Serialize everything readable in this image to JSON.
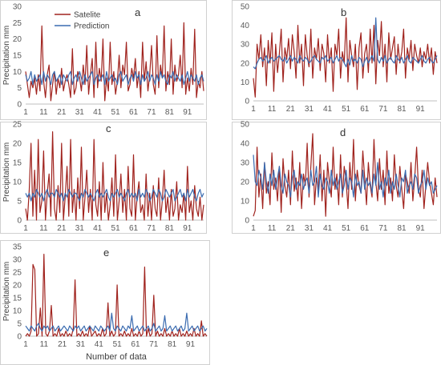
{
  "chart_data": [
    {
      "panel": "a",
      "type": "line",
      "x_ticks": [
        "1",
        "11",
        "21",
        "31",
        "41",
        "51",
        "61",
        "71",
        "81",
        "91"
      ],
      "ylabel": "Precipitation mm",
      "xlabel": "",
      "y_ticks": [
        0,
        5,
        10,
        15,
        20,
        25,
        30
      ],
      "ylim": [
        0,
        30
      ],
      "legend": [
        "Satelite",
        "Prediction"
      ],
      "legend_position": "top-left",
      "series": [
        {
          "name": "Satelite",
          "color": "#a0231e",
          "values": [
            10,
            6,
            2,
            7,
            5,
            8,
            3,
            9,
            4,
            24,
            7,
            2,
            9,
            12,
            1,
            6,
            10,
            3,
            8,
            5,
            11,
            4,
            7,
            9,
            6,
            2,
            17,
            3,
            5,
            10,
            8,
            4,
            12,
            6,
            18,
            3,
            9,
            14,
            2,
            19,
            5,
            11,
            7,
            20,
            1,
            8,
            4,
            19,
            6,
            10,
            3,
            7,
            15,
            5,
            12,
            9,
            19,
            4,
            6,
            11,
            8,
            14,
            5,
            10,
            2,
            19,
            7,
            13,
            4,
            9,
            18,
            6,
            3,
            21,
            5,
            12,
            8,
            24,
            4,
            10,
            6,
            20,
            3,
            12,
            7,
            9,
            15,
            5,
            25,
            3,
            8,
            4,
            11,
            6,
            23,
            2,
            7,
            5,
            10,
            4
          ]
        },
        {
          "name": "Prediction",
          "color": "#3a6bb0",
          "values": [
            9,
            7,
            8,
            10,
            6,
            9,
            7,
            8,
            9,
            6,
            10,
            7,
            9,
            8,
            6,
            9,
            10,
            7,
            8,
            9,
            6,
            9,
            8,
            7,
            9,
            10,
            6,
            8,
            9,
            7,
            10,
            8,
            6,
            9,
            7,
            8,
            9,
            10,
            6,
            8,
            9,
            7,
            8,
            9,
            6,
            10,
            7,
            8,
            9,
            7,
            8,
            6,
            9,
            10,
            7,
            8,
            9,
            6,
            8,
            9,
            7,
            10,
            8,
            9,
            6,
            9,
            7,
            8,
            10,
            7,
            9,
            8,
            6,
            9,
            7,
            10,
            8,
            9,
            7,
            6,
            9,
            8,
            10,
            7,
            9,
            8,
            7,
            9,
            6,
            8,
            10,
            7,
            9,
            8,
            7,
            9,
            6,
            8,
            9,
            7
          ]
        }
      ]
    },
    {
      "panel": "b",
      "type": "line",
      "x_ticks": [
        "1",
        "11",
        "21",
        "31",
        "41",
        "51",
        "61",
        "71",
        "81",
        "91"
      ],
      "y_ticks": [
        0,
        10,
        20,
        30,
        40,
        50
      ],
      "ylim": [
        0,
        50
      ],
      "series": [
        {
          "name": "Satelite",
          "color": "#a0231e",
          "values": [
            12,
            2,
            30,
            22,
            35,
            18,
            28,
            8,
            32,
            20,
            36,
            5,
            30,
            15,
            25,
            38,
            10,
            28,
            22,
            33,
            17,
            35,
            26,
            12,
            40,
            20,
            30,
            8,
            35,
            24,
            18,
            38,
            12,
            28,
            22,
            33,
            16,
            30,
            25,
            10,
            35,
            20,
            28,
            5,
            30,
            24,
            38,
            12,
            26,
            20,
            44,
            10,
            32,
            24,
            18,
            30,
            6,
            28,
            36,
            12,
            25,
            30,
            15,
            38,
            20,
            40,
            9,
            32,
            24,
            42,
            18,
            30,
            10,
            36,
            22,
            28,
            34,
            14,
            30,
            20,
            26,
            38,
            12,
            28,
            22,
            32,
            16,
            30,
            24,
            20,
            28,
            18,
            26,
            22,
            30,
            20,
            28,
            14,
            26,
            20
          ]
        },
        {
          "name": "Prediction",
          "color": "#3a6bb0",
          "values": [
            18,
            17,
            20,
            22,
            23,
            21,
            22,
            24,
            20,
            22,
            23,
            21,
            22,
            23,
            24,
            22,
            21,
            23,
            20,
            22,
            24,
            21,
            23,
            22,
            20,
            24,
            22,
            21,
            23,
            22,
            20,
            21,
            23,
            24,
            22,
            21,
            20,
            23,
            22,
            24,
            21,
            22,
            23,
            20,
            22,
            24,
            21,
            23,
            22,
            20,
            18,
            22,
            19,
            24,
            21,
            22,
            20,
            23,
            22,
            18,
            21,
            23,
            20,
            22,
            24,
            21,
            44,
            22,
            20,
            23,
            21,
            24,
            20,
            22,
            23,
            21,
            20,
            24,
            22,
            21,
            23,
            20,
            22,
            24,
            21,
            20,
            23,
            22,
            21,
            20,
            22,
            24,
            21,
            20,
            22,
            23,
            21,
            20,
            22,
            24
          ]
        }
      ]
    },
    {
      "panel": "c",
      "type": "line",
      "x_ticks": [
        "1",
        "11",
        "21",
        "31",
        "41",
        "51",
        "61",
        "71",
        "81",
        "91"
      ],
      "ylabel": "Precipitation mm",
      "y_ticks": [
        0,
        5,
        10,
        15,
        20,
        25
      ],
      "ylim": [
        0,
        25
      ],
      "series": [
        {
          "name": "Satelite",
          "color": "#a0231e",
          "values": [
            3,
            0,
            8,
            20,
            1,
            13,
            0,
            21,
            2,
            5,
            18,
            0,
            7,
            12,
            1,
            23,
            3,
            0,
            9,
            2,
            20,
            0,
            6,
            14,
            1,
            21,
            2,
            8,
            0,
            11,
            3,
            19,
            0,
            6,
            13,
            2,
            8,
            0,
            21,
            4,
            1,
            10,
            0,
            15,
            2,
            7,
            0,
            4,
            11,
            1,
            17,
            0,
            5,
            12,
            2,
            8,
            0,
            14,
            3,
            1,
            17,
            0,
            6,
            10,
            2,
            4,
            0,
            12,
            1,
            7,
            0,
            9,
            3,
            1,
            11,
            0,
            5,
            13,
            2,
            6,
            0,
            8,
            1,
            3,
            10,
            0,
            4,
            2,
            7,
            0,
            14,
            2,
            5,
            0,
            9,
            3,
            1,
            6,
            0,
            4
          ]
        },
        {
          "name": "Prediction",
          "color": "#3a6bb0",
          "values": [
            7,
            6,
            7,
            5,
            7,
            6,
            8,
            7,
            6,
            7,
            5,
            7,
            8,
            6,
            7,
            7,
            6,
            8,
            7,
            6,
            7,
            5,
            7,
            6,
            8,
            7,
            6,
            7,
            7,
            6,
            5,
            7,
            6,
            8,
            7,
            6,
            7,
            6,
            5,
            7,
            8,
            6,
            7,
            6,
            7,
            8,
            6,
            5,
            7,
            6,
            7,
            8,
            6,
            7,
            6,
            5,
            7,
            8,
            6,
            7,
            6,
            7,
            5,
            8,
            6,
            7,
            6,
            8,
            7,
            5,
            6,
            8,
            7,
            6,
            8,
            7,
            5,
            6,
            8,
            7,
            6,
            7,
            8,
            5,
            6,
            7,
            8,
            6,
            7,
            5,
            8,
            6,
            7,
            8,
            6,
            5,
            7,
            8,
            6,
            7
          ]
        }
      ]
    },
    {
      "panel": "d",
      "type": "line",
      "x_ticks": [
        "1",
        "11",
        "21",
        "31",
        "41",
        "51",
        "61",
        "71",
        "81",
        "91"
      ],
      "y_ticks": [
        0,
        10,
        20,
        30,
        40,
        50
      ],
      "ylim": [
        0,
        50
      ],
      "series": [
        {
          "name": "Satelite",
          "color": "#a0231e",
          "values": [
            2,
            5,
            38,
            12,
            24,
            6,
            30,
            14,
            20,
            8,
            35,
            16,
            22,
            10,
            28,
            4,
            32,
            18,
            12,
            26,
            8,
            36,
            15,
            22,
            10,
            30,
            6,
            24,
            18,
            40,
            12,
            28,
            45,
            8,
            22,
            16,
            34,
            10,
            26,
            2,
            30,
            20,
            12,
            38,
            16,
            24,
            8,
            34,
            12,
            28,
            20,
            6,
            30,
            16,
            42,
            10,
            26,
            18,
            14,
            36,
            22,
            8,
            30,
            18,
            12,
            42,
            20,
            10,
            32,
            16,
            26,
            8,
            36,
            14,
            22,
            10,
            34,
            18,
            12,
            28,
            16,
            6,
            24,
            20,
            14,
            30,
            10,
            22,
            38,
            16,
            12,
            26,
            6,
            18,
            30,
            20,
            14,
            8,
            22,
            12
          ]
        },
        {
          "name": "Prediction",
          "color": "#3a6bb0",
          "values": [
            34,
            20,
            18,
            26,
            22,
            16,
            30,
            20,
            14,
            24,
            18,
            26,
            16,
            22,
            28,
            18,
            14,
            24,
            20,
            18,
            12,
            22,
            26,
            16,
            20,
            18,
            24,
            16,
            20,
            22,
            14,
            26,
            18,
            20,
            28,
            12,
            24,
            18,
            16,
            22,
            20,
            14,
            26,
            18,
            22,
            16,
            20,
            24,
            14,
            18,
            26,
            16,
            22,
            20,
            12,
            24,
            18,
            20,
            14,
            26,
            16,
            22,
            18,
            20,
            14,
            24,
            18,
            30,
            16,
            20,
            12,
            22,
            18,
            26,
            14,
            20,
            16,
            24,
            18,
            12,
            22,
            20,
            26,
            14,
            18,
            20,
            16,
            24,
            22,
            14,
            18,
            20,
            26,
            16,
            22,
            18,
            20,
            14,
            16,
            18
          ]
        }
      ]
    },
    {
      "panel": "e",
      "type": "line",
      "x_ticks": [
        "1",
        "11",
        "21",
        "31",
        "41",
        "51",
        "61",
        "71",
        "81",
        "91"
      ],
      "ylabel": "Precipitation mm",
      "xlabel": "Number of data",
      "y_ticks": [
        0,
        5,
        10,
        15,
        20,
        25,
        30,
        35
      ],
      "ylim": [
        0,
        35
      ],
      "series": [
        {
          "name": "Satelite",
          "color": "#a0231e",
          "values": [
            0,
            1,
            0,
            2,
            28,
            26,
            0,
            1,
            11,
            0,
            32,
            1,
            0,
            2,
            12,
            0,
            1,
            0,
            3,
            0,
            1,
            0,
            2,
            0,
            1,
            0,
            3,
            22,
            0,
            1,
            0,
            2,
            0,
            1,
            0,
            4,
            0,
            1,
            2,
            0,
            1,
            0,
            3,
            0,
            1,
            13,
            0,
            2,
            0,
            1,
            20,
            0,
            1,
            0,
            2,
            0,
            1,
            0,
            3,
            0,
            1,
            0,
            2,
            0,
            1,
            27,
            0,
            3,
            0,
            1,
            16,
            0,
            2,
            0,
            1,
            0,
            3,
            0,
            1,
            0,
            2,
            0,
            1,
            0,
            3,
            0,
            1,
            0,
            2,
            0,
            1,
            0,
            3,
            0,
            1,
            0,
            6,
            0,
            1,
            0
          ]
        },
        {
          "name": "Prediction",
          "color": "#3a6bb0",
          "values": [
            4,
            3,
            2,
            4,
            3,
            2,
            4,
            5,
            3,
            2,
            4,
            3,
            4,
            2,
            3,
            4,
            2,
            3,
            4,
            2,
            3,
            4,
            3,
            2,
            4,
            3,
            2,
            4,
            3,
            4,
            2,
            3,
            4,
            2,
            3,
            4,
            3,
            2,
            4,
            3,
            2,
            4,
            3,
            2,
            3,
            4,
            2,
            9,
            3,
            2,
            4,
            3,
            2,
            4,
            3,
            2,
            4,
            3,
            8,
            2,
            3,
            4,
            2,
            3,
            4,
            2,
            3,
            4,
            2,
            3,
            5,
            2,
            3,
            4,
            2,
            3,
            8,
            2,
            3,
            4,
            2,
            3,
            4,
            2,
            3,
            4,
            2,
            3,
            9,
            2,
            3,
            4,
            2,
            3,
            4,
            2,
            3,
            4,
            2,
            3
          ]
        }
      ]
    }
  ]
}
